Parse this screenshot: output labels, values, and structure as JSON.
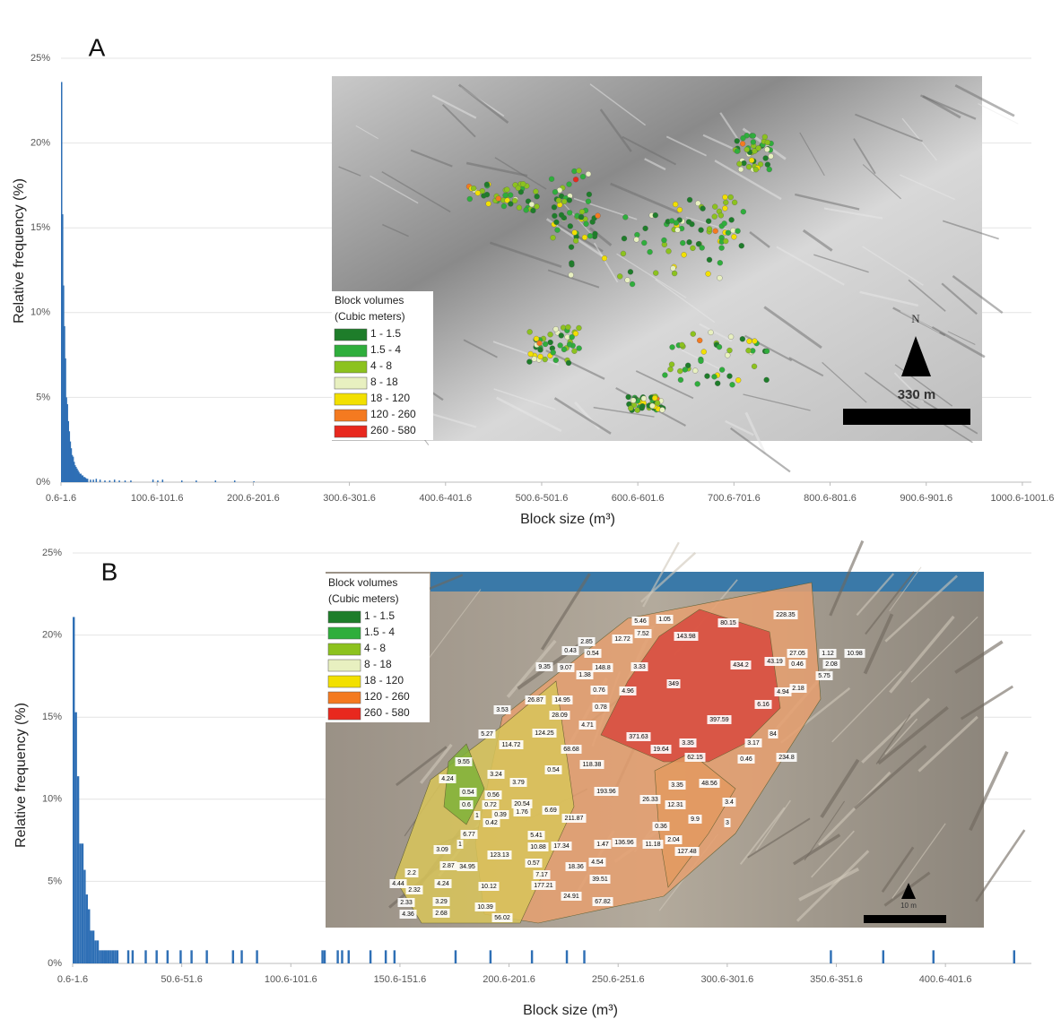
{
  "chart_data": [
    {
      "type": "bar",
      "panel_label": "A",
      "ylabel": "Relative frequency (%)",
      "xlabel": "Block size (m³)",
      "color": "#2e6fb5",
      "grid": true,
      "ylim": [
        0,
        25
      ],
      "yticks": [
        {
          "value": 0,
          "label": "0%"
        },
        {
          "value": 5,
          "label": "5%"
        },
        {
          "value": 10,
          "label": "10%"
        },
        {
          "value": 15,
          "label": "15%"
        },
        {
          "value": 20,
          "label": "20%"
        },
        {
          "value": 25,
          "label": "25%"
        }
      ],
      "xlim": [
        0.6,
        1010
      ],
      "xticks": [
        {
          "value": 0.6,
          "label": "0.6-1.6"
        },
        {
          "value": 100.6,
          "label": "100.6-101.6"
        },
        {
          "value": 200.6,
          "label": "200.6-201.6"
        },
        {
          "value": 300.6,
          "label": "300.6-301.6"
        },
        {
          "value": 400.6,
          "label": "400.6-401.6"
        },
        {
          "value": 500.6,
          "label": "500.6-501.6"
        },
        {
          "value": 600.6,
          "label": "600.6-601.6"
        },
        {
          "value": 700.6,
          "label": "700.6-701.6"
        },
        {
          "value": 800.6,
          "label": "800.6-801.6"
        },
        {
          "value": 900.6,
          "label": "900.6-901.6"
        },
        {
          "value": 1000.6,
          "label": "1000.6-1001.6"
        }
      ],
      "x": [
        0.6,
        1.6,
        2.6,
        3.6,
        4.6,
        5.6,
        6.6,
        7.6,
        8.6,
        9.6,
        10.6,
        11.6,
        12.6,
        13.6,
        14.6,
        15.6,
        16.6,
        17.6,
        18.6,
        19.6,
        20.6,
        21.6,
        22.6,
        23.6,
        24.6,
        25.6,
        26.6,
        27.6,
        30.6,
        33.6,
        36.6,
        40.6,
        45.6,
        50.6,
        55.6,
        60.6,
        66.6,
        72.6,
        95.6,
        100.6,
        105.6,
        125.6,
        140.6,
        160.6,
        180.6,
        200.6
      ],
      "values": [
        23.6,
        15.8,
        11.6,
        9.2,
        7.3,
        5.0,
        4.6,
        3.6,
        3.0,
        2.4,
        2.0,
        1.6,
        1.5,
        1.2,
        1.0,
        0.9,
        0.8,
        0.7,
        0.6,
        0.5,
        0.5,
        0.4,
        0.4,
        0.3,
        0.3,
        0.25,
        0.2,
        0.2,
        0.15,
        0.15,
        0.2,
        0.15,
        0.1,
        0.1,
        0.15,
        0.1,
        0.1,
        0.1,
        0.15,
        0.1,
        0.15,
        0.1,
        0.1,
        0.1,
        0.1,
        0.05
      ],
      "inset": {
        "legend_title": "Block volumes",
        "legend_subtitle": "(Cubic meters)",
        "legend": [
          {
            "label": "1 - 1.5",
            "color": "#1e7d2a"
          },
          {
            "label": "1.5 - 4",
            "color": "#2fae3c"
          },
          {
            "label": "4 - 8",
            "color": "#8cc21e"
          },
          {
            "label": "8 - 18",
            "color": "#e8f0c0"
          },
          {
            "label": "18 - 120",
            "color": "#f2e000"
          },
          {
            "label": "120 - 260",
            "color": "#f47a20"
          },
          {
            "label": "260 - 580",
            "color": "#e8281e"
          }
        ],
        "north_label": "N",
        "scale_label": "330 m"
      }
    },
    {
      "type": "bar",
      "panel_label": "B",
      "ylabel": "Relative frequency (%)",
      "xlabel": "Block size (m³)",
      "color": "#2e6fb5",
      "grid": true,
      "ylim": [
        0,
        25
      ],
      "yticks": [
        {
          "value": 0,
          "label": "0%"
        },
        {
          "value": 5,
          "label": "5%"
        },
        {
          "value": 10,
          "label": "10%"
        },
        {
          "value": 15,
          "label": "15%"
        },
        {
          "value": 20,
          "label": "20%"
        },
        {
          "value": 25,
          "label": "25%"
        }
      ],
      "xlim": [
        0.6,
        440
      ],
      "xticks": [
        {
          "value": 0.6,
          "label": "0.6-1.6"
        },
        {
          "value": 50.6,
          "label": "50.6-51.6"
        },
        {
          "value": 100.6,
          "label": "100.6-101.6"
        },
        {
          "value": 150.6,
          "label": "150.6-151.6"
        },
        {
          "value": 200.6,
          "label": "200.6-201.6"
        },
        {
          "value": 250.6,
          "label": "250.6-251.6"
        },
        {
          "value": 300.6,
          "label": "300.6-301.6"
        },
        {
          "value": 350.6,
          "label": "350.6-351.6"
        },
        {
          "value": 400.6,
          "label": "400.6-401.6"
        }
      ],
      "x": [
        0.6,
        1.6,
        2.6,
        3.6,
        4.6,
        5.6,
        6.6,
        7.6,
        8.6,
        9.6,
        10.6,
        11.6,
        12.6,
        13.6,
        14.6,
        15.6,
        16.6,
        17.6,
        18.6,
        19.6,
        20.6,
        25.6,
        27.6,
        33.6,
        38.6,
        43.6,
        49.6,
        54.6,
        61.6,
        73.6,
        77.6,
        84.6,
        114.6,
        115.6,
        121.6,
        123.6,
        126.6,
        136.6,
        143.6,
        147.6,
        175.6,
        191.6,
        210.6,
        226.6,
        234.6,
        347.6,
        371.6,
        394.6,
        431.6
      ],
      "values": [
        21.1,
        15.3,
        11.4,
        7.3,
        7.3,
        5.7,
        4.2,
        3.3,
        2.0,
        2.0,
        1.4,
        1.4,
        0.8,
        0.8,
        0.8,
        0.8,
        0.8,
        0.8,
        0.8,
        0.8,
        0.8,
        0.8,
        0.8,
        0.8,
        0.8,
        0.8,
        0.8,
        0.8,
        0.8,
        0.8,
        0.8,
        0.8,
        0.8,
        0.8,
        0.8,
        0.8,
        0.8,
        0.8,
        0.8,
        0.8,
        0.8,
        0.8,
        0.8,
        0.8,
        0.8,
        0.8,
        0.8,
        0.8,
        0.8
      ],
      "inset": {
        "legend_title": "Block volumes",
        "legend_subtitle": "(Cubic meters)",
        "legend": [
          {
            "label": "1 - 1.5",
            "color": "#1e7d2a"
          },
          {
            "label": "1.5 - 4",
            "color": "#2fae3c"
          },
          {
            "label": "4 - 8",
            "color": "#8cc21e"
          },
          {
            "label": "8 - 18",
            "color": "#e8f0c0"
          },
          {
            "label": "18 - 120",
            "color": "#f2e000"
          },
          {
            "label": "120 - 260",
            "color": "#f47a20"
          },
          {
            "label": "260 - 580",
            "color": "#e8281e"
          }
        ],
        "scale_label": "10 m",
        "block_labels": [
          "5.46",
          "1.05",
          "80.15",
          "228.35",
          "12.72",
          "7.52",
          "143.98",
          "2.85",
          "0.43",
          "0.54",
          "27.05",
          "1.12",
          "10.98",
          "43.19",
          "0.46",
          "2.08",
          "9.35",
          "9.07",
          "148.8",
          "3.33",
          "434.2",
          "1.38",
          "5.75",
          "349",
          "0.76",
          "4.96",
          "4.94",
          "2.18",
          "26.87",
          "14.95",
          "0.78",
          "6.16",
          "3.53",
          "28.09",
          "397.59",
          "4.71",
          "5.27",
          "114.72",
          "124.25",
          "371.63",
          "84",
          "68.68",
          "3.35",
          "3.17",
          "19.64",
          "62.15",
          "0.46",
          "234.8",
          "9.55",
          "118.38",
          "0.54",
          "3.24",
          "3.79",
          "4.24",
          "193.96",
          "3.35",
          "48.56",
          "0.54",
          "0.56",
          "26.33",
          "0.6",
          "0.72",
          "20.54",
          "6.69",
          "12.31",
          "3.4",
          "1",
          "0.39",
          "1.76",
          "211.87",
          "0.42",
          "9.9",
          "0.36",
          "3",
          "6.77",
          "5.41",
          "2.04",
          "1",
          "10.88",
          "17.34",
          "1.47",
          "136.96",
          "11.18",
          "3.09",
          "127.48",
          "123.13",
          "0.57",
          "4.54",
          "2.87",
          "34.95",
          "18.36",
          "7.17",
          "2.2",
          "4.24",
          "39.51",
          "4.44",
          "2.32",
          "177.21",
          "10.12",
          "24.91",
          "2.33",
          "3.29",
          "67.82",
          "10.39",
          "4.36",
          "2.68",
          "56.02"
        ]
      }
    }
  ]
}
